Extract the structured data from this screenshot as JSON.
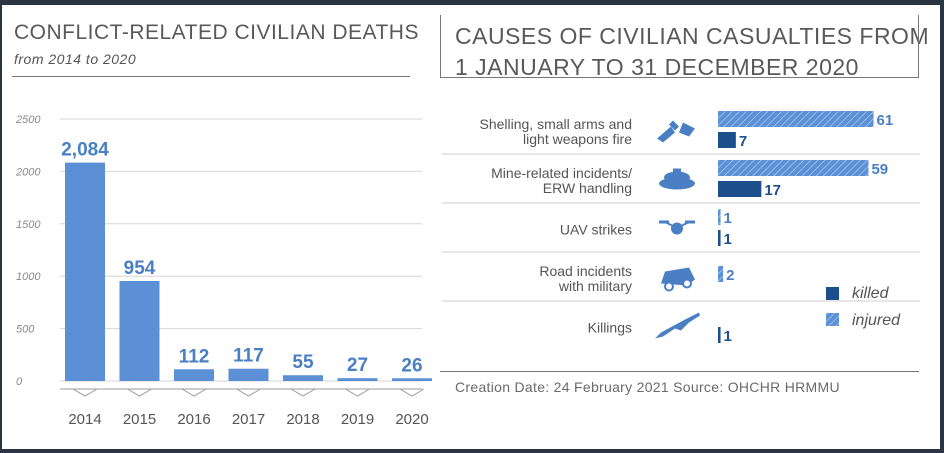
{
  "left_title": "CONFLICT-RELATED CIVILIAN DEATHS",
  "left_subtitle": "from 2014 to 2020",
  "right_title_line1": "CAUSES OF CIVILIAN CASUALTIES FROM",
  "right_title_line2": "1 JANUARY TO 31 DECEMBER 2020",
  "footer": "Creation Date: 24 February 2021  Source: OHCHR HRMMU",
  "colors": {
    "bar_light": "#5b8fd6",
    "killed": "#1d4f8c",
    "injured": "#5b8fd6",
    "text": "#595959"
  },
  "chart_data": [
    {
      "type": "bar",
      "title": "CONFLICT-RELATED CIVILIAN DEATHS",
      "subtitle": "from 2014 to 2020",
      "categories": [
        "2014",
        "2015",
        "2016",
        "2017",
        "2018",
        "2019",
        "2020"
      ],
      "values": [
        2084,
        954,
        112,
        117,
        55,
        27,
        26
      ],
      "value_labels": [
        "2,084",
        "954",
        "112",
        "117",
        "55",
        "27",
        "26"
      ],
      "ylim": [
        0,
        2500
      ],
      "yticks": [
        "0",
        "500",
        "1000",
        "1500",
        "2000",
        "2500"
      ],
      "grid": true
    },
    {
      "type": "bar",
      "orientation": "horizontal",
      "title": "CAUSES OF CIVILIAN CASUALTIES FROM 1 JANUARY TO 31 DECEMBER 2020",
      "categories": [
        {
          "label": [
            "Shelling, small arms and",
            "light weapons fire"
          ],
          "icon": "explosion-icon"
        },
        {
          "label": [
            "Mine-related incidents/",
            "ERW handling"
          ],
          "icon": "landmine-icon"
        },
        {
          "label": [
            "UAV strikes"
          ],
          "icon": "drone-icon"
        },
        {
          "label": [
            "Road incidents",
            "with military"
          ],
          "icon": "vehicle-crash-icon"
        },
        {
          "label": [
            "Killings"
          ],
          "icon": "rifle-icon"
        }
      ],
      "series": [
        {
          "name": "injured",
          "values": [
            61,
            59,
            1,
            2,
            null
          ]
        },
        {
          "name": "killed",
          "values": [
            7,
            17,
            1,
            null,
            1
          ]
        }
      ],
      "legend": [
        "killed",
        "injured"
      ],
      "legend_position": "bottom-right"
    }
  ]
}
